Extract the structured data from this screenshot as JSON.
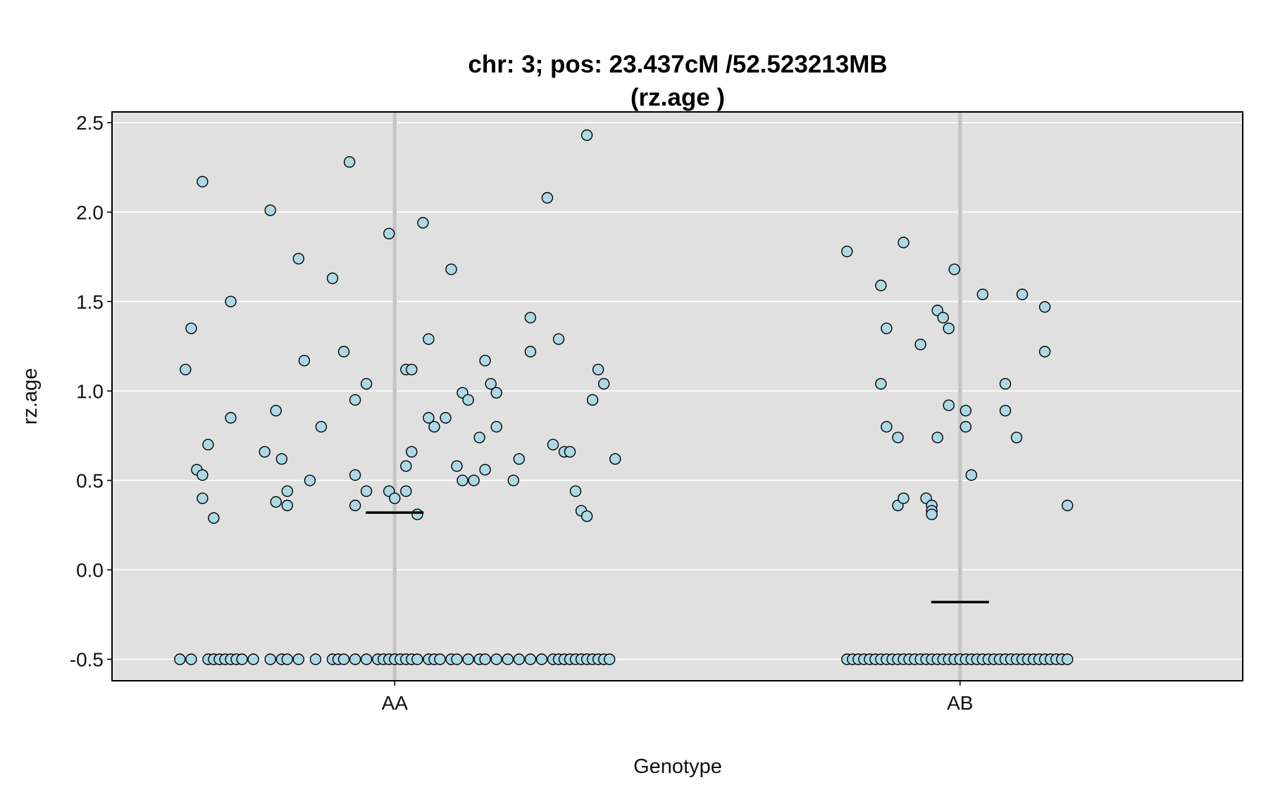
{
  "chart_data": {
    "type": "scatter",
    "title": [
      "chr: 3; pos: 23.437cM /52.523213MB",
      "(rz.age )"
    ],
    "xlabel": "Genotype",
    "ylabel": "rz.age",
    "categories": [
      "AA",
      "AB"
    ],
    "ylim": [
      -0.62,
      2.56
    ],
    "yticks": [
      "-0.5",
      "0.0",
      "0.5",
      "1.0",
      "1.5",
      "2.0",
      "2.5"
    ],
    "grid": true,
    "colors": {
      "panel": "#e0e0e0",
      "grid": "#ffffff",
      "point_fill": "#add8e6",
      "point_stroke": "#000000",
      "category_line": "#c4c4c4",
      "mean": "#000000"
    },
    "means": [
      0.32,
      -0.18
    ],
    "groups": [
      {
        "name": "AA",
        "points": [
          [
            -0.37,
            1.12
          ],
          [
            -0.36,
            1.35
          ],
          [
            -0.35,
            0.56
          ],
          [
            -0.34,
            2.17
          ],
          [
            -0.34,
            0.53
          ],
          [
            -0.34,
            0.4
          ],
          [
            -0.33,
            0.7
          ],
          [
            -0.32,
            0.29
          ],
          [
            -0.29,
            1.5
          ],
          [
            -0.29,
            0.85
          ],
          [
            -0.23,
            0.66
          ],
          [
            -0.22,
            2.01
          ],
          [
            -0.21,
            0.89
          ],
          [
            -0.21,
            0.38
          ],
          [
            -0.2,
            0.62
          ],
          [
            -0.19,
            0.44
          ],
          [
            -0.19,
            0.36
          ],
          [
            -0.17,
            1.74
          ],
          [
            -0.16,
            1.17
          ],
          [
            -0.15,
            0.5
          ],
          [
            -0.13,
            0.8
          ],
          [
            -0.11,
            1.63
          ],
          [
            -0.09,
            1.22
          ],
          [
            -0.08,
            2.28
          ],
          [
            -0.07,
            0.95
          ],
          [
            -0.07,
            0.53
          ],
          [
            -0.07,
            0.36
          ],
          [
            -0.05,
            1.04
          ],
          [
            -0.05,
            0.44
          ],
          [
            -0.01,
            1.88
          ],
          [
            -0.01,
            0.44
          ],
          [
            0.0,
            0.4
          ],
          [
            0.02,
            1.12
          ],
          [
            0.02,
            0.58
          ],
          [
            0.02,
            0.44
          ],
          [
            0.03,
            1.12
          ],
          [
            0.03,
            0.66
          ],
          [
            0.04,
            0.31
          ],
          [
            0.05,
            1.94
          ],
          [
            0.06,
            1.29
          ],
          [
            0.06,
            0.85
          ],
          [
            0.07,
            0.8
          ],
          [
            0.09,
            0.85
          ],
          [
            0.1,
            1.68
          ],
          [
            0.11,
            0.58
          ],
          [
            0.12,
            0.99
          ],
          [
            0.12,
            0.5
          ],
          [
            0.13,
            0.95
          ],
          [
            0.14,
            0.5
          ],
          [
            0.15,
            0.74
          ],
          [
            0.16,
            1.17
          ],
          [
            0.16,
            0.56
          ],
          [
            0.17,
            1.04
          ],
          [
            0.18,
            0.8
          ],
          [
            0.18,
            0.99
          ],
          [
            0.21,
            0.5
          ],
          [
            0.22,
            0.62
          ],
          [
            0.24,
            1.41
          ],
          [
            0.24,
            1.22
          ],
          [
            0.27,
            2.08
          ],
          [
            0.28,
            0.7
          ],
          [
            0.29,
            1.29
          ],
          [
            0.3,
            0.66
          ],
          [
            0.31,
            0.66
          ],
          [
            0.32,
            0.44
          ],
          [
            0.33,
            0.33
          ],
          [
            0.34,
            2.43
          ],
          [
            0.34,
            0.3
          ],
          [
            0.35,
            0.95
          ],
          [
            0.36,
            1.12
          ],
          [
            0.37,
            1.04
          ],
          [
            0.39,
            0.62
          ],
          [
            -0.38,
            -0.5
          ],
          [
            -0.36,
            -0.5
          ],
          [
            -0.33,
            -0.5
          ],
          [
            -0.32,
            -0.5
          ],
          [
            -0.31,
            -0.5
          ],
          [
            -0.3,
            -0.5
          ],
          [
            -0.29,
            -0.5
          ],
          [
            -0.28,
            -0.5
          ],
          [
            -0.27,
            -0.5
          ],
          [
            -0.25,
            -0.5
          ],
          [
            -0.22,
            -0.5
          ],
          [
            -0.2,
            -0.5
          ],
          [
            -0.19,
            -0.5
          ],
          [
            -0.17,
            -0.5
          ],
          [
            -0.14,
            -0.5
          ],
          [
            -0.11,
            -0.5
          ],
          [
            -0.1,
            -0.5
          ],
          [
            -0.09,
            -0.5
          ],
          [
            -0.07,
            -0.5
          ],
          [
            -0.05,
            -0.5
          ],
          [
            -0.03,
            -0.5
          ],
          [
            -0.02,
            -0.5
          ],
          [
            -0.01,
            -0.5
          ],
          [
            0.0,
            -0.5
          ],
          [
            0.01,
            -0.5
          ],
          [
            0.02,
            -0.5
          ],
          [
            0.03,
            -0.5
          ],
          [
            0.04,
            -0.5
          ],
          [
            0.06,
            -0.5
          ],
          [
            0.07,
            -0.5
          ],
          [
            0.08,
            -0.5
          ],
          [
            0.1,
            -0.5
          ],
          [
            0.11,
            -0.5
          ],
          [
            0.13,
            -0.5
          ],
          [
            0.15,
            -0.5
          ],
          [
            0.16,
            -0.5
          ],
          [
            0.18,
            -0.5
          ],
          [
            0.2,
            -0.5
          ],
          [
            0.22,
            -0.5
          ],
          [
            0.24,
            -0.5
          ],
          [
            0.26,
            -0.5
          ],
          [
            0.28,
            -0.5
          ],
          [
            0.29,
            -0.5
          ],
          [
            0.3,
            -0.5
          ],
          [
            0.31,
            -0.5
          ],
          [
            0.32,
            -0.5
          ],
          [
            0.33,
            -0.5
          ],
          [
            0.34,
            -0.5
          ],
          [
            0.35,
            -0.5
          ],
          [
            0.36,
            -0.5
          ],
          [
            0.37,
            -0.5
          ],
          [
            0.38,
            -0.5
          ]
        ]
      },
      {
        "name": "AB",
        "points": [
          [
            -0.2,
            1.78
          ],
          [
            -0.14,
            1.59
          ],
          [
            -0.14,
            1.04
          ],
          [
            -0.13,
            1.35
          ],
          [
            -0.13,
            0.8
          ],
          [
            -0.11,
            0.74
          ],
          [
            -0.11,
            0.36
          ],
          [
            -0.1,
            1.83
          ],
          [
            -0.1,
            0.4
          ],
          [
            -0.07,
            1.26
          ],
          [
            -0.06,
            0.4
          ],
          [
            -0.04,
            0.74
          ],
          [
            -0.05,
            0.36
          ],
          [
            -0.05,
            0.33
          ],
          [
            -0.05,
            0.31
          ],
          [
            -0.04,
            1.45
          ],
          [
            -0.03,
            1.41
          ],
          [
            -0.02,
            1.35
          ],
          [
            -0.02,
            0.92
          ],
          [
            -0.01,
            1.68
          ],
          [
            0.01,
            0.89
          ],
          [
            0.01,
            0.8
          ],
          [
            0.02,
            0.53
          ],
          [
            0.04,
            1.54
          ],
          [
            0.08,
            1.04
          ],
          [
            0.08,
            0.89
          ],
          [
            0.1,
            0.74
          ],
          [
            0.11,
            1.54
          ],
          [
            0.15,
            1.47
          ],
          [
            0.15,
            1.22
          ],
          [
            0.19,
            0.36
          ],
          [
            -0.2,
            -0.5
          ],
          [
            -0.19,
            -0.5
          ],
          [
            -0.18,
            -0.5
          ],
          [
            -0.17,
            -0.5
          ],
          [
            -0.16,
            -0.5
          ],
          [
            -0.15,
            -0.5
          ],
          [
            -0.14,
            -0.5
          ],
          [
            -0.13,
            -0.5
          ],
          [
            -0.12,
            -0.5
          ],
          [
            -0.11,
            -0.5
          ],
          [
            -0.1,
            -0.5
          ],
          [
            -0.09,
            -0.5
          ],
          [
            -0.08,
            -0.5
          ],
          [
            -0.07,
            -0.5
          ],
          [
            -0.06,
            -0.5
          ],
          [
            -0.05,
            -0.5
          ],
          [
            -0.04,
            -0.5
          ],
          [
            -0.03,
            -0.5
          ],
          [
            -0.02,
            -0.5
          ],
          [
            -0.01,
            -0.5
          ],
          [
            0.0,
            -0.5
          ],
          [
            0.01,
            -0.5
          ],
          [
            0.02,
            -0.5
          ],
          [
            0.03,
            -0.5
          ],
          [
            0.04,
            -0.5
          ],
          [
            0.05,
            -0.5
          ],
          [
            0.06,
            -0.5
          ],
          [
            0.07,
            -0.5
          ],
          [
            0.08,
            -0.5
          ],
          [
            0.09,
            -0.5
          ],
          [
            0.1,
            -0.5
          ],
          [
            0.11,
            -0.5
          ],
          [
            0.12,
            -0.5
          ],
          [
            0.13,
            -0.5
          ],
          [
            0.14,
            -0.5
          ],
          [
            0.15,
            -0.5
          ],
          [
            0.16,
            -0.5
          ],
          [
            0.17,
            -0.5
          ],
          [
            0.18,
            -0.5
          ],
          [
            0.19,
            -0.5
          ]
        ]
      }
    ]
  }
}
